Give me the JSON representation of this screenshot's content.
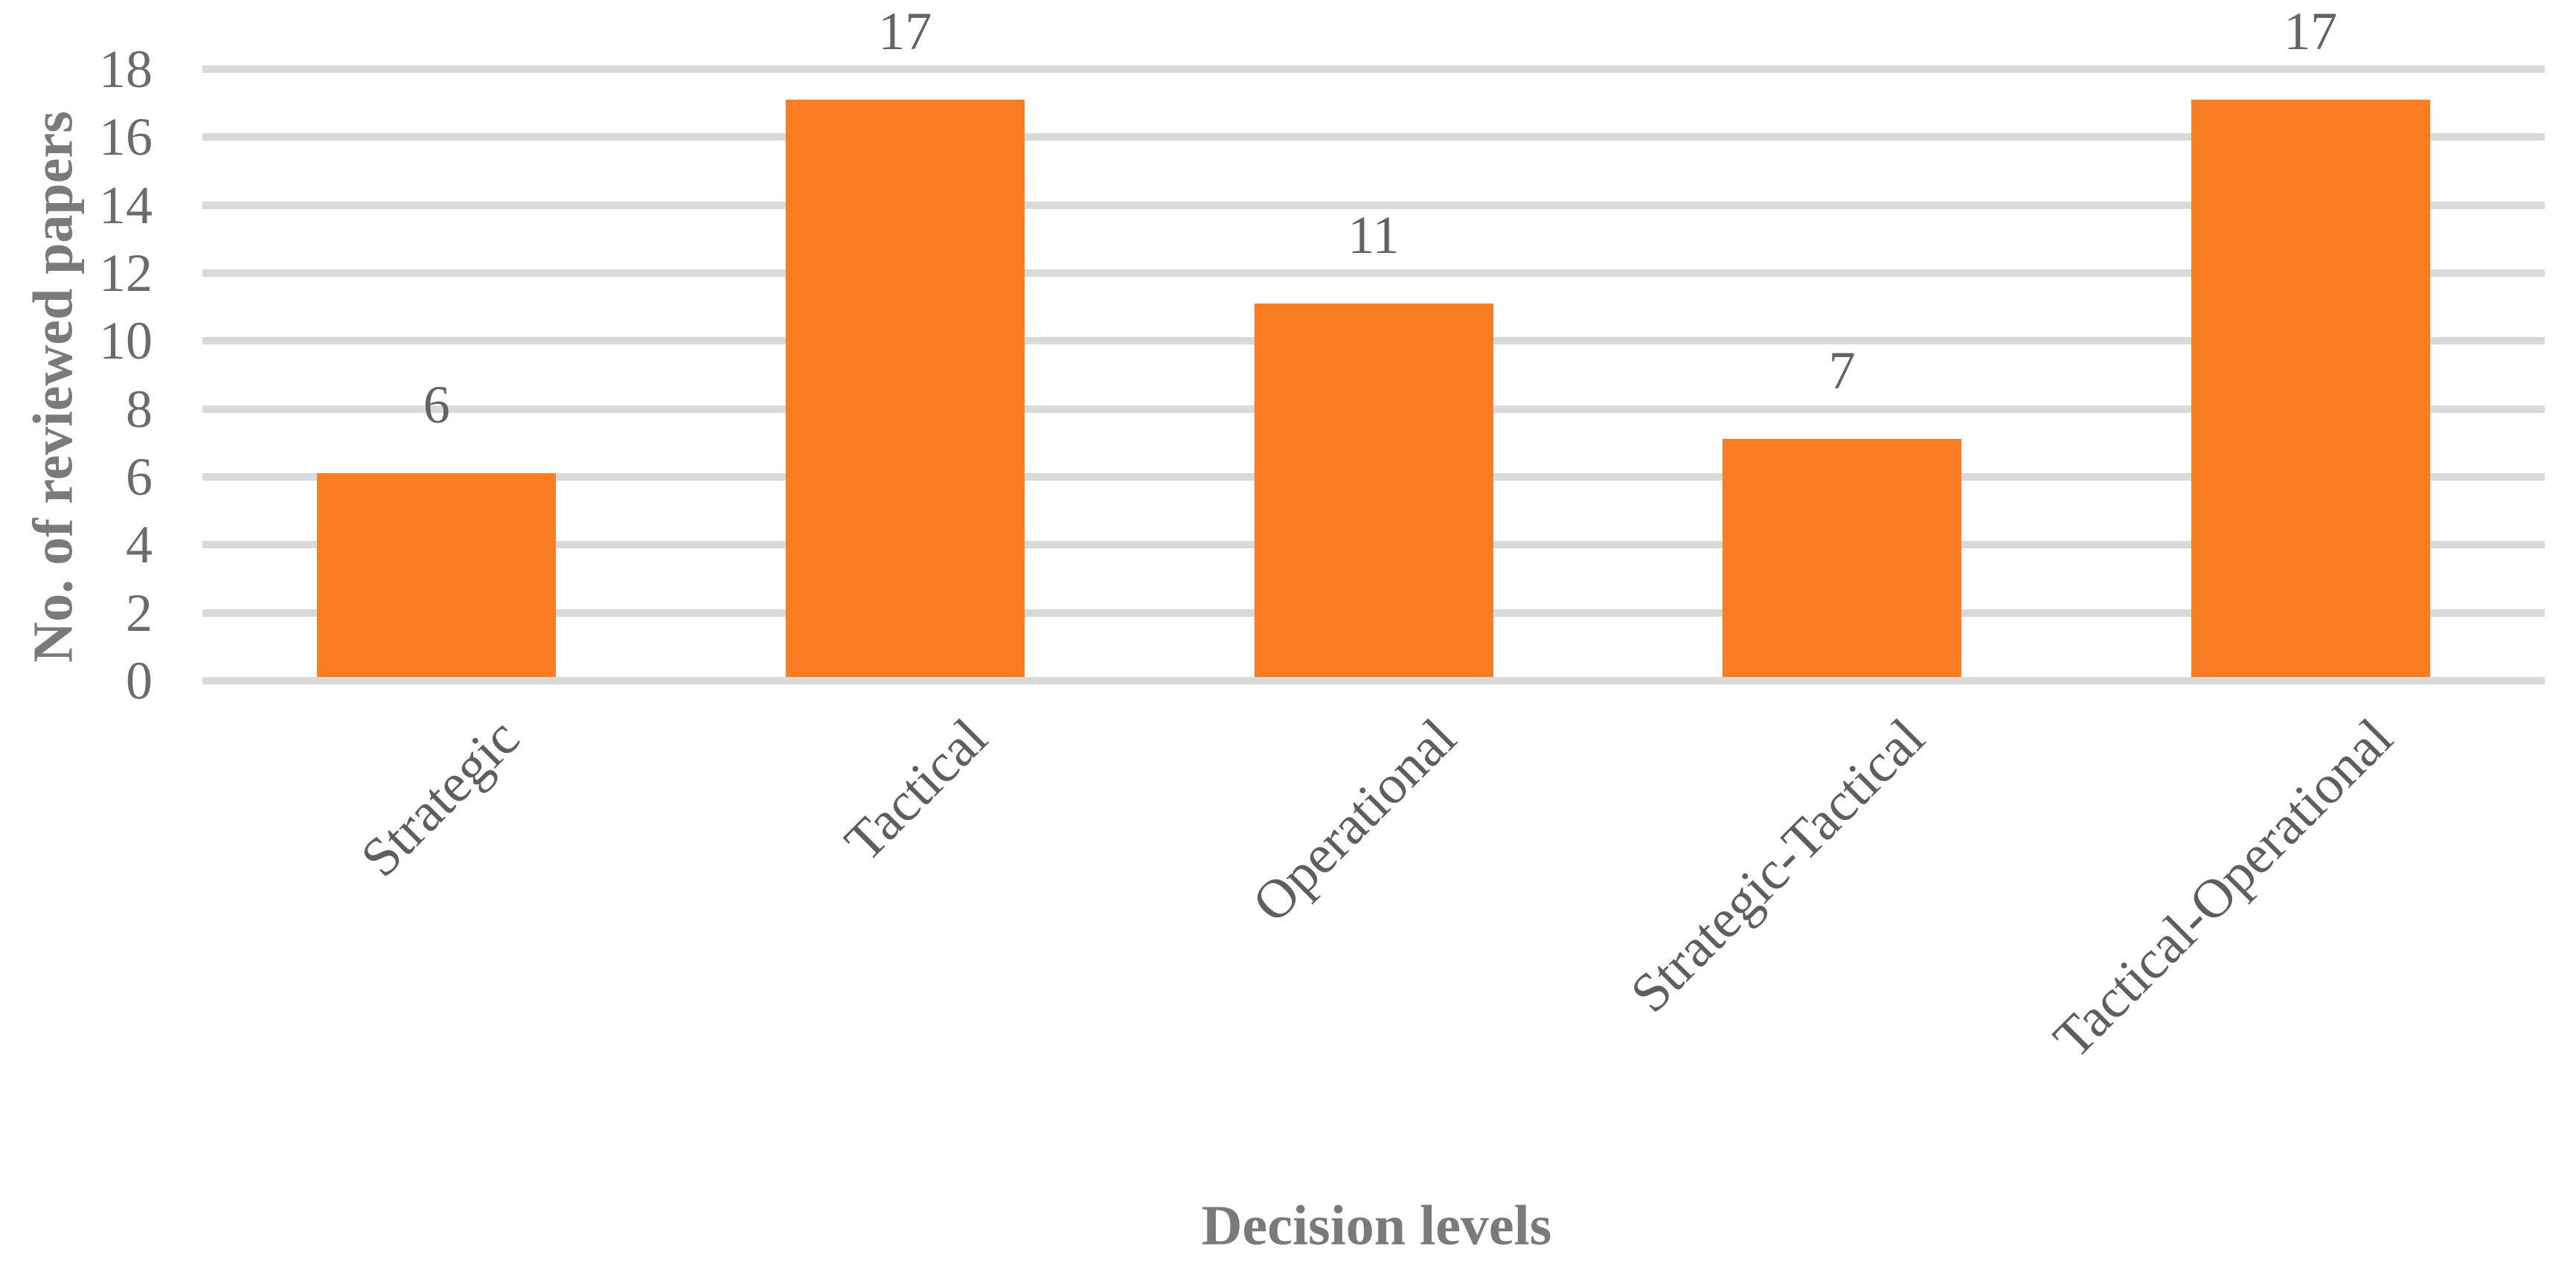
{
  "chart_data": {
    "type": "bar",
    "title": "",
    "categories": [
      "Strategic",
      "Tactical",
      "Operational",
      "Strategic-Tactical",
      "Tactical-Operational"
    ],
    "values": [
      6,
      17,
      11,
      7,
      17
    ],
    "value_labels": [
      "6",
      "17",
      "11",
      "7",
      "17"
    ],
    "xlabel": "Decision levels",
    "ylabel": "No. of reviewed papers",
    "ylim": [
      0,
      18
    ],
    "yticks": [
      0,
      2,
      4,
      6,
      8,
      10,
      12,
      14,
      16,
      18
    ],
    "grid": true,
    "legend_position": "none",
    "bar_color": "#FA7D23",
    "gridline_color": "#D9D9D9",
    "tick_label_color": "#6B6B6B",
    "value_label_color": "#646464",
    "category_label_color": "#5E5E5E",
    "axis_title_color": "#7A7A7A"
  }
}
